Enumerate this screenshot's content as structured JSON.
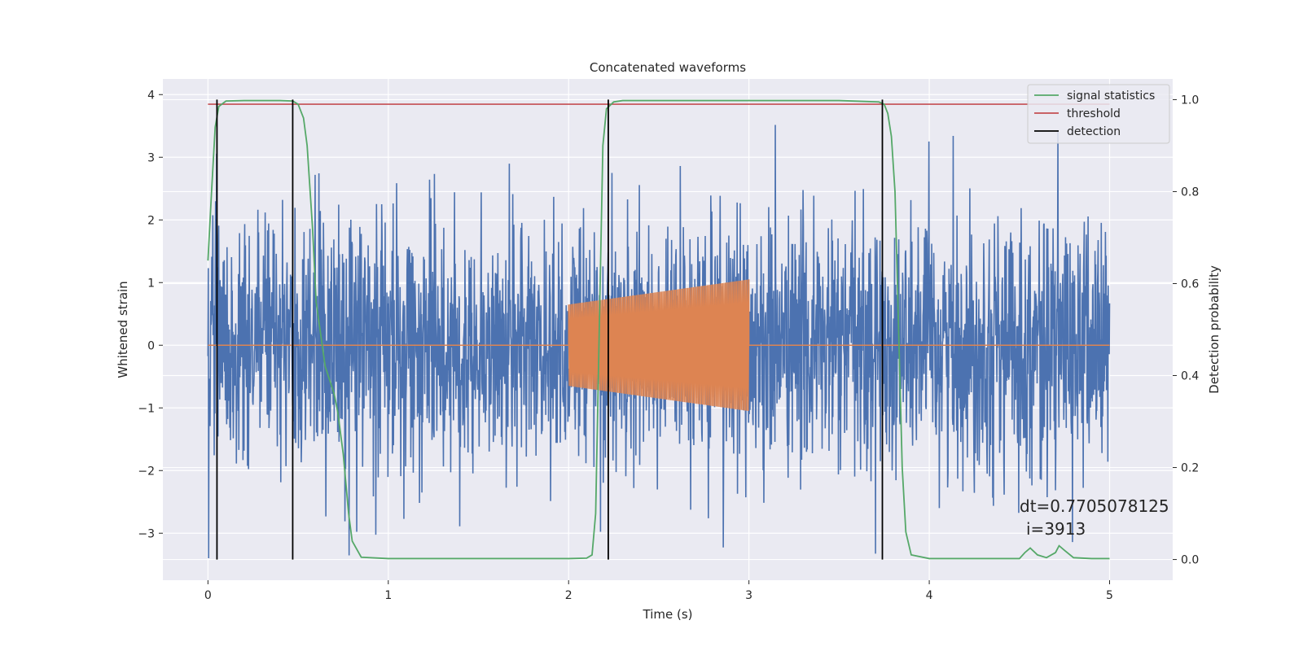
{
  "chart_data": {
    "type": "line",
    "title": "Concatenated waveforms",
    "xlabel": "Time (s)",
    "ylabel": "Whitened strain",
    "y2label": "Detection probability",
    "xlim": [
      -0.25,
      5.35
    ],
    "ylim": [
      -3.75,
      4.25
    ],
    "y2lim": [
      -0.045,
      1.045
    ],
    "xticks": [
      0,
      1,
      2,
      3,
      4,
      5
    ],
    "xtick_labels": [
      "0",
      "1",
      "2",
      "3",
      "4",
      "5"
    ],
    "yticks": [
      -3,
      -2,
      -1,
      0,
      1,
      2,
      3,
      4
    ],
    "ytick_labels": [
      "−3",
      "−2",
      "−1",
      "0",
      "1",
      "2",
      "3",
      "4"
    ],
    "y2ticks": [
      0.0,
      0.2,
      0.4,
      0.6,
      0.8,
      1.0
    ],
    "y2tick_labels": [
      "0.0",
      "0.2",
      "0.4",
      "0.6",
      "0.8",
      "1.0"
    ],
    "grid": true,
    "legend_position": "top-right",
    "legend": [
      {
        "label": "signal statistics",
        "color": "#55a868"
      },
      {
        "label": "threshold",
        "color": "#c44e52"
      },
      {
        "label": "detection",
        "color": "#000000"
      }
    ],
    "noise": {
      "name": "whitened strain",
      "color": "#4c72b0",
      "x_range": [
        0,
        5
      ],
      "amplitude_typical": 1.0,
      "min": -3.4,
      "max": 3.9
    },
    "injected_signal": {
      "name": "injected waveform",
      "color": "#dd8452",
      "x_range": [
        2,
        3
      ],
      "amplitude_start": 0.65,
      "amplitude_end": 1.05,
      "baseline": 0
    },
    "signal_statistics": {
      "color": "#55a868",
      "x": [
        0,
        0.02,
        0.04,
        0.06,
        0.1,
        0.2,
        0.3,
        0.4,
        0.47,
        0.5,
        0.53,
        0.55,
        0.58,
        0.6,
        0.65,
        0.7,
        0.72,
        0.75,
        0.78,
        0.8,
        0.85,
        1.0,
        1.5,
        2.0,
        2.1,
        2.13,
        2.15,
        2.17,
        2.19,
        2.21,
        2.25,
        2.3,
        2.5,
        3.0,
        3.5,
        3.72,
        3.75,
        3.77,
        3.79,
        3.81,
        3.83,
        3.85,
        3.87,
        3.9,
        4.0,
        4.5,
        4.53,
        4.56,
        4.6,
        4.65,
        4.7,
        4.72,
        4.75,
        4.8,
        4.9,
        5.0
      ],
      "y": [
        0.65,
        0.8,
        0.94,
        0.985,
        0.997,
        0.998,
        0.998,
        0.998,
        0.997,
        0.99,
        0.96,
        0.9,
        0.72,
        0.56,
        0.42,
        0.36,
        0.32,
        0.23,
        0.1,
        0.04,
        0.005,
        0.002,
        0.002,
        0.002,
        0.003,
        0.01,
        0.1,
        0.5,
        0.9,
        0.98,
        0.995,
        0.998,
        0.998,
        0.998,
        0.998,
        0.995,
        0.99,
        0.97,
        0.92,
        0.8,
        0.5,
        0.2,
        0.06,
        0.01,
        0.002,
        0.002,
        0.015,
        0.025,
        0.01,
        0.004,
        0.015,
        0.03,
        0.02,
        0.004,
        0.002,
        0.002
      ]
    },
    "threshold": {
      "value": 0.99,
      "x_range": [
        0,
        5
      ],
      "color": "#c44e52"
    },
    "detections": [
      0.05,
      0.47,
      2.22,
      3.74
    ],
    "detection_y_range": [
      0.0,
      1.0
    ],
    "annotations": [
      "dt=0.7705078125",
      "i=3913"
    ]
  }
}
